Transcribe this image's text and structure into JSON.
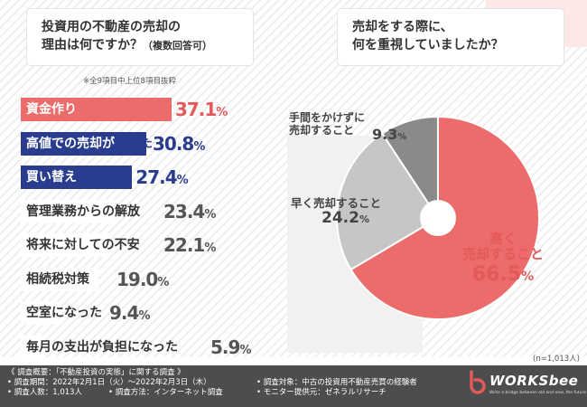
{
  "question_left": {
    "line1": "投資用の不動産の売却の",
    "line2": "理由は何ですか？",
    "line2_sub": "（複数回答可）"
  },
  "question_right": {
    "line1": "売却をする際に、",
    "line2": "何を重視していましたか？"
  },
  "note": "※全9項目中上位8項目抜粋",
  "sample_size": "(n=1,013人)",
  "chart_data": [
    {
      "type": "bar",
      "orientation": "horizontal",
      "title": "",
      "xlim": [
        0,
        40
      ],
      "categories": [
        "資金作り",
        "高値での売却が出来た",
        "買い替え",
        "管理業務からの解放",
        "将来に対しての不安",
        "相続税対策",
        "空室になった",
        "毎月の支出が負担になった"
      ],
      "values": [
        37.1,
        30.8,
        27.4,
        23.4,
        22.1,
        19.0,
        9.4,
        5.9
      ],
      "value_labels": [
        "37.1",
        "30.8",
        "27.4",
        "23.4",
        "22.1",
        "19.0",
        "9.4",
        "5.9"
      ],
      "unit": "%",
      "bar_colors": [
        "#ec6b6b",
        "#2a3c8e",
        "#2a3c8e",
        "#ffffff",
        "#ffffff",
        "#ffffff",
        "#ffffff",
        "#ffffff"
      ],
      "value_colors": [
        "#e45a5a",
        "#2a3c8e",
        "#2a3c8e",
        "#555555",
        "#555555",
        "#555555",
        "#555555",
        "#555555"
      ]
    },
    {
      "type": "pie",
      "title": "",
      "categories": [
        "高く売却すること",
        "早く売却すること",
        "手間をかけずに売却すること"
      ],
      "category_lines": [
        [
          "高く",
          "売却すること"
        ],
        [
          "早く売却すること"
        ],
        [
          "手間をかけずに",
          "売却すること"
        ]
      ],
      "values": [
        66.5,
        24.2,
        9.3
      ],
      "value_labels": [
        "66.5",
        "24.2",
        "9.3"
      ],
      "unit": "%",
      "colors": [
        "#ec6b6b",
        "#c6c6c6",
        "#8a8a8a"
      ],
      "label_colors": [
        "#e45a5a",
        "#444444",
        "#444444"
      ],
      "start": "12 o'clock, clockwise",
      "donut_hole": true
    }
  ],
  "footer": {
    "heading": "《 調査概要：「不動産投資の実態」に関する調査 》",
    "period": "• 調査期間：2022年2月1日（火）〜2022年2月3日（木）",
    "count": "• 調査人数：1,013人",
    "method": "• 調査方法：インターネット調査",
    "target": "• 調査対象：中古の投資用不動産売買の経験者",
    "provider": "• モニター提供元：ゼネラルリサーチ",
    "logo_text": "WORKSbee",
    "logo_tagline": "Write a bridge between old and new, the future",
    "logo_color": "#e45a5a"
  }
}
